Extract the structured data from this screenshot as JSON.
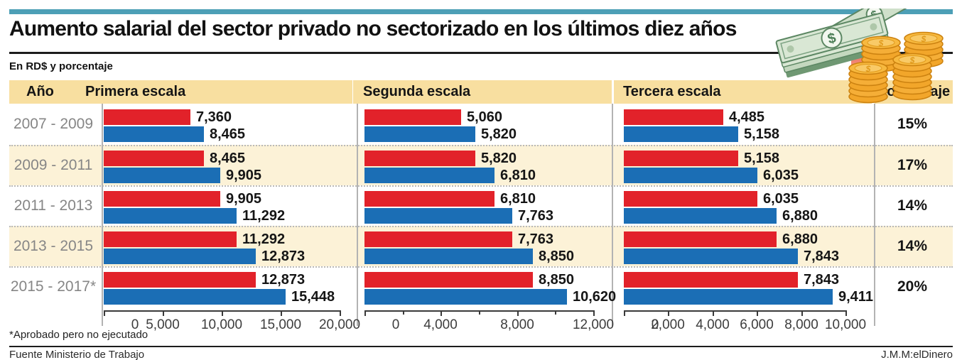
{
  "header": {
    "title": "Aumento salarial del sector privado no sectorizado en los últimos diez años",
    "subtitle": "En RD$ y porcentaje"
  },
  "table": {
    "columns": [
      "Año",
      "Primera escala",
      "Segunda escala",
      "Tercera escala",
      "Porcentaje"
    ],
    "rows": [
      {
        "year": "2007 - 2009",
        "percent": "15%"
      },
      {
        "year": "2009 - 2011",
        "percent": "17%"
      },
      {
        "year": "2011 - 2013",
        "percent": "14%"
      },
      {
        "year": "2013 - 2015",
        "percent": "14%"
      },
      {
        "year": "2015 - 2017*",
        "percent": "20%"
      }
    ]
  },
  "chart_data": [
    {
      "type": "bar",
      "title": "Primera escala",
      "categories": [
        "2007 - 2009",
        "2009 - 2011",
        "2011 - 2013",
        "2013 - 2015",
        "2015 - 2017*"
      ],
      "series": [
        {
          "name": "rojo",
          "color": "#e2222a",
          "values": [
            7360,
            8465,
            9905,
            11292,
            12873
          ],
          "labels": [
            "7,360",
            "8,465",
            "9,905",
            "11,292",
            "12,873"
          ]
        },
        {
          "name": "azul",
          "color": "#1b6eb5",
          "values": [
            8465,
            9905,
            11292,
            12873,
            15448
          ],
          "labels": [
            "8,465",
            "9,905",
            "11,292",
            "12,873",
            "15,448"
          ]
        }
      ],
      "xlim": [
        0,
        20000
      ],
      "tick_values": [
        0,
        5000,
        10000,
        15000,
        20000
      ],
      "tick_labels": [
        "0",
        "5,000",
        "10,000",
        "15,000",
        "20,000"
      ],
      "minor_tick_values": []
    },
    {
      "type": "bar",
      "title": "Segunda escala",
      "categories": [
        "2007 - 2009",
        "2009 - 2011",
        "2011 - 2013",
        "2013 - 2015",
        "2015 - 2017*"
      ],
      "series": [
        {
          "name": "rojo",
          "color": "#e2222a",
          "values": [
            5060,
            5820,
            6810,
            7763,
            8850
          ],
          "labels": [
            "5,060",
            "5,820",
            "6,810",
            "7,763",
            "8,850"
          ]
        },
        {
          "name": "azul",
          "color": "#1b6eb5",
          "values": [
            5820,
            6810,
            7763,
            8850,
            10620
          ],
          "labels": [
            "5,820",
            "6,810",
            "7,763",
            "8,850",
            "10,620"
          ]
        }
      ],
      "xlim": [
        0,
        12000
      ],
      "tick_values": [
        0,
        4000,
        8000,
        12000
      ],
      "tick_labels": [
        "0",
        "4,000",
        "8,000",
        "12,000"
      ],
      "minor_tick_values": [
        2000,
        6000,
        10000
      ]
    },
    {
      "type": "bar",
      "title": "Tercera escala",
      "categories": [
        "2007 - 2009",
        "2009 - 2011",
        "2011 - 2013",
        "2013 - 2015",
        "2015 - 2017*"
      ],
      "series": [
        {
          "name": "rojo",
          "color": "#e2222a",
          "values": [
            4485,
            5158,
            6035,
            6880,
            7843
          ],
          "labels": [
            "4,485",
            "5,158",
            "6,035",
            "6,880",
            "7,843"
          ]
        },
        {
          "name": "azul",
          "color": "#1b6eb5",
          "values": [
            5158,
            6035,
            6880,
            7843,
            9411
          ],
          "labels": [
            "5,158",
            "6,035",
            "6,880",
            "7,843",
            "9,411"
          ]
        }
      ],
      "xlim": [
        0,
        10000
      ],
      "tick_values": [
        0,
        2000,
        4000,
        6000,
        8000,
        10000
      ],
      "tick_labels": [
        "0",
        "2,000",
        "4,000",
        "6,000",
        "8,000",
        "10,000"
      ],
      "minor_tick_values": []
    }
  ],
  "percent_column": {
    "header": "Porcentaje",
    "values": [
      "15%",
      "17%",
      "14%",
      "14%",
      "20%"
    ]
  },
  "footer": {
    "footnote": "*Aprobado pero no ejecutado",
    "source": "Fuente Ministerio de Trabajo",
    "credit": "J.M.M:elDinero"
  },
  "colors": {
    "red_bar": "#e2222a",
    "blue_bar": "#1b6eb5",
    "header_bg": "#f8dfa0",
    "stripe_bg": "#fcf2d7",
    "topbar": "#4d9fb6",
    "year_text": "#868686"
  },
  "icons": {
    "money_illustration": "money-bills-coins-rising-arrow-icon"
  }
}
